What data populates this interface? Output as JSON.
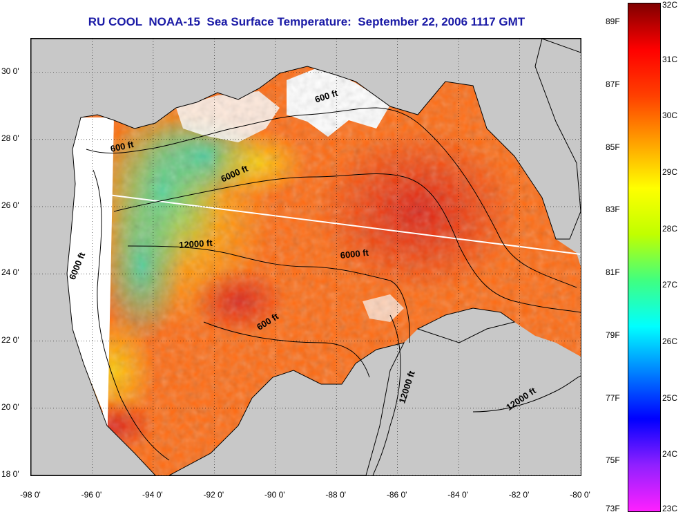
{
  "title": "RU COOL  NOAA-15  Sea Surface Temperature:  September 22, 2006 1117 GMT",
  "colors": {
    "land": "#c8c8c8",
    "cloud": "#ffffff",
    "title": "#1a1aa6",
    "sst_hot": "#e81e10",
    "sst_warm": "#ff6a00",
    "sst_mid": "#ffd400",
    "sst_cool": "#36d8a0",
    "sst_cold": "#1a5cff"
  },
  "map": {
    "lon_range": [
      -98,
      -80
    ],
    "lat_range": [
      18,
      31
    ],
    "x_ticks": [
      "-98 0'",
      "-96 0'",
      "-94 0'",
      "-92 0'",
      "-90 0'",
      "-88 0'",
      "-86 0'",
      "-84 0'",
      "-82 0'",
      "-80 0'"
    ],
    "y_ticks": [
      "18 0'",
      "20 0'",
      "22 0'",
      "24 0'",
      "26 0'",
      "28 0'",
      "30 0'"
    ],
    "grid": true
  },
  "contour_labels": [
    {
      "text": "600 ft",
      "lon": -95.0,
      "lat": 27.7,
      "angle": -12
    },
    {
      "text": "6000 ft",
      "lon": -91.3,
      "lat": 26.9,
      "angle": -24
    },
    {
      "text": "600 ft",
      "lon": -88.3,
      "lat": 29.2,
      "angle": -18
    },
    {
      "text": "6000 ft",
      "lon": -96.4,
      "lat": 24.2,
      "angle": -68
    },
    {
      "text": "12000 ft",
      "lon": -92.6,
      "lat": 24.8,
      "angle": -4
    },
    {
      "text": "6000 ft",
      "lon": -87.4,
      "lat": 24.5,
      "angle": -6
    },
    {
      "text": "600 ft",
      "lon": -90.2,
      "lat": 22.5,
      "angle": -32
    },
    {
      "text": "12000 ft",
      "lon": -85.6,
      "lat": 20.6,
      "angle": -72
    },
    {
      "text": "12000 ft",
      "lon": -81.9,
      "lat": 20.2,
      "angle": -34
    }
  ],
  "colorbar": {
    "fahrenheit": [
      {
        "label": "89F",
        "value": 89
      },
      {
        "label": "87F",
        "value": 87
      },
      {
        "label": "85F",
        "value": 85
      },
      {
        "label": "83F",
        "value": 83
      },
      {
        "label": "81F",
        "value": 81
      },
      {
        "label": "79F",
        "value": 79
      },
      {
        "label": "77F",
        "value": 77
      },
      {
        "label": "75F",
        "value": 75
      },
      {
        "label": "73F",
        "value": 73
      }
    ],
    "celsius": [
      {
        "label": "32C",
        "value": 32
      },
      {
        "label": "31C",
        "value": 31
      },
      {
        "label": "30C",
        "value": 30
      },
      {
        "label": "29C",
        "value": 29
      },
      {
        "label": "28C",
        "value": 28
      },
      {
        "label": "27C",
        "value": 27
      },
      {
        "label": "26C",
        "value": 26
      },
      {
        "label": "25C",
        "value": 25
      },
      {
        "label": "24C",
        "value": 24
      },
      {
        "label": "23C",
        "value": 23
      }
    ],
    "range_c": [
      23,
      32
    ],
    "gradient": [
      "#ff20ff",
      "#9020ff",
      "#0000ff",
      "#0080ff",
      "#00ffff",
      "#40ff80",
      "#c0ff00",
      "#ffff00",
      "#ffa000",
      "#ff4000",
      "#ff0000",
      "#800000"
    ]
  }
}
